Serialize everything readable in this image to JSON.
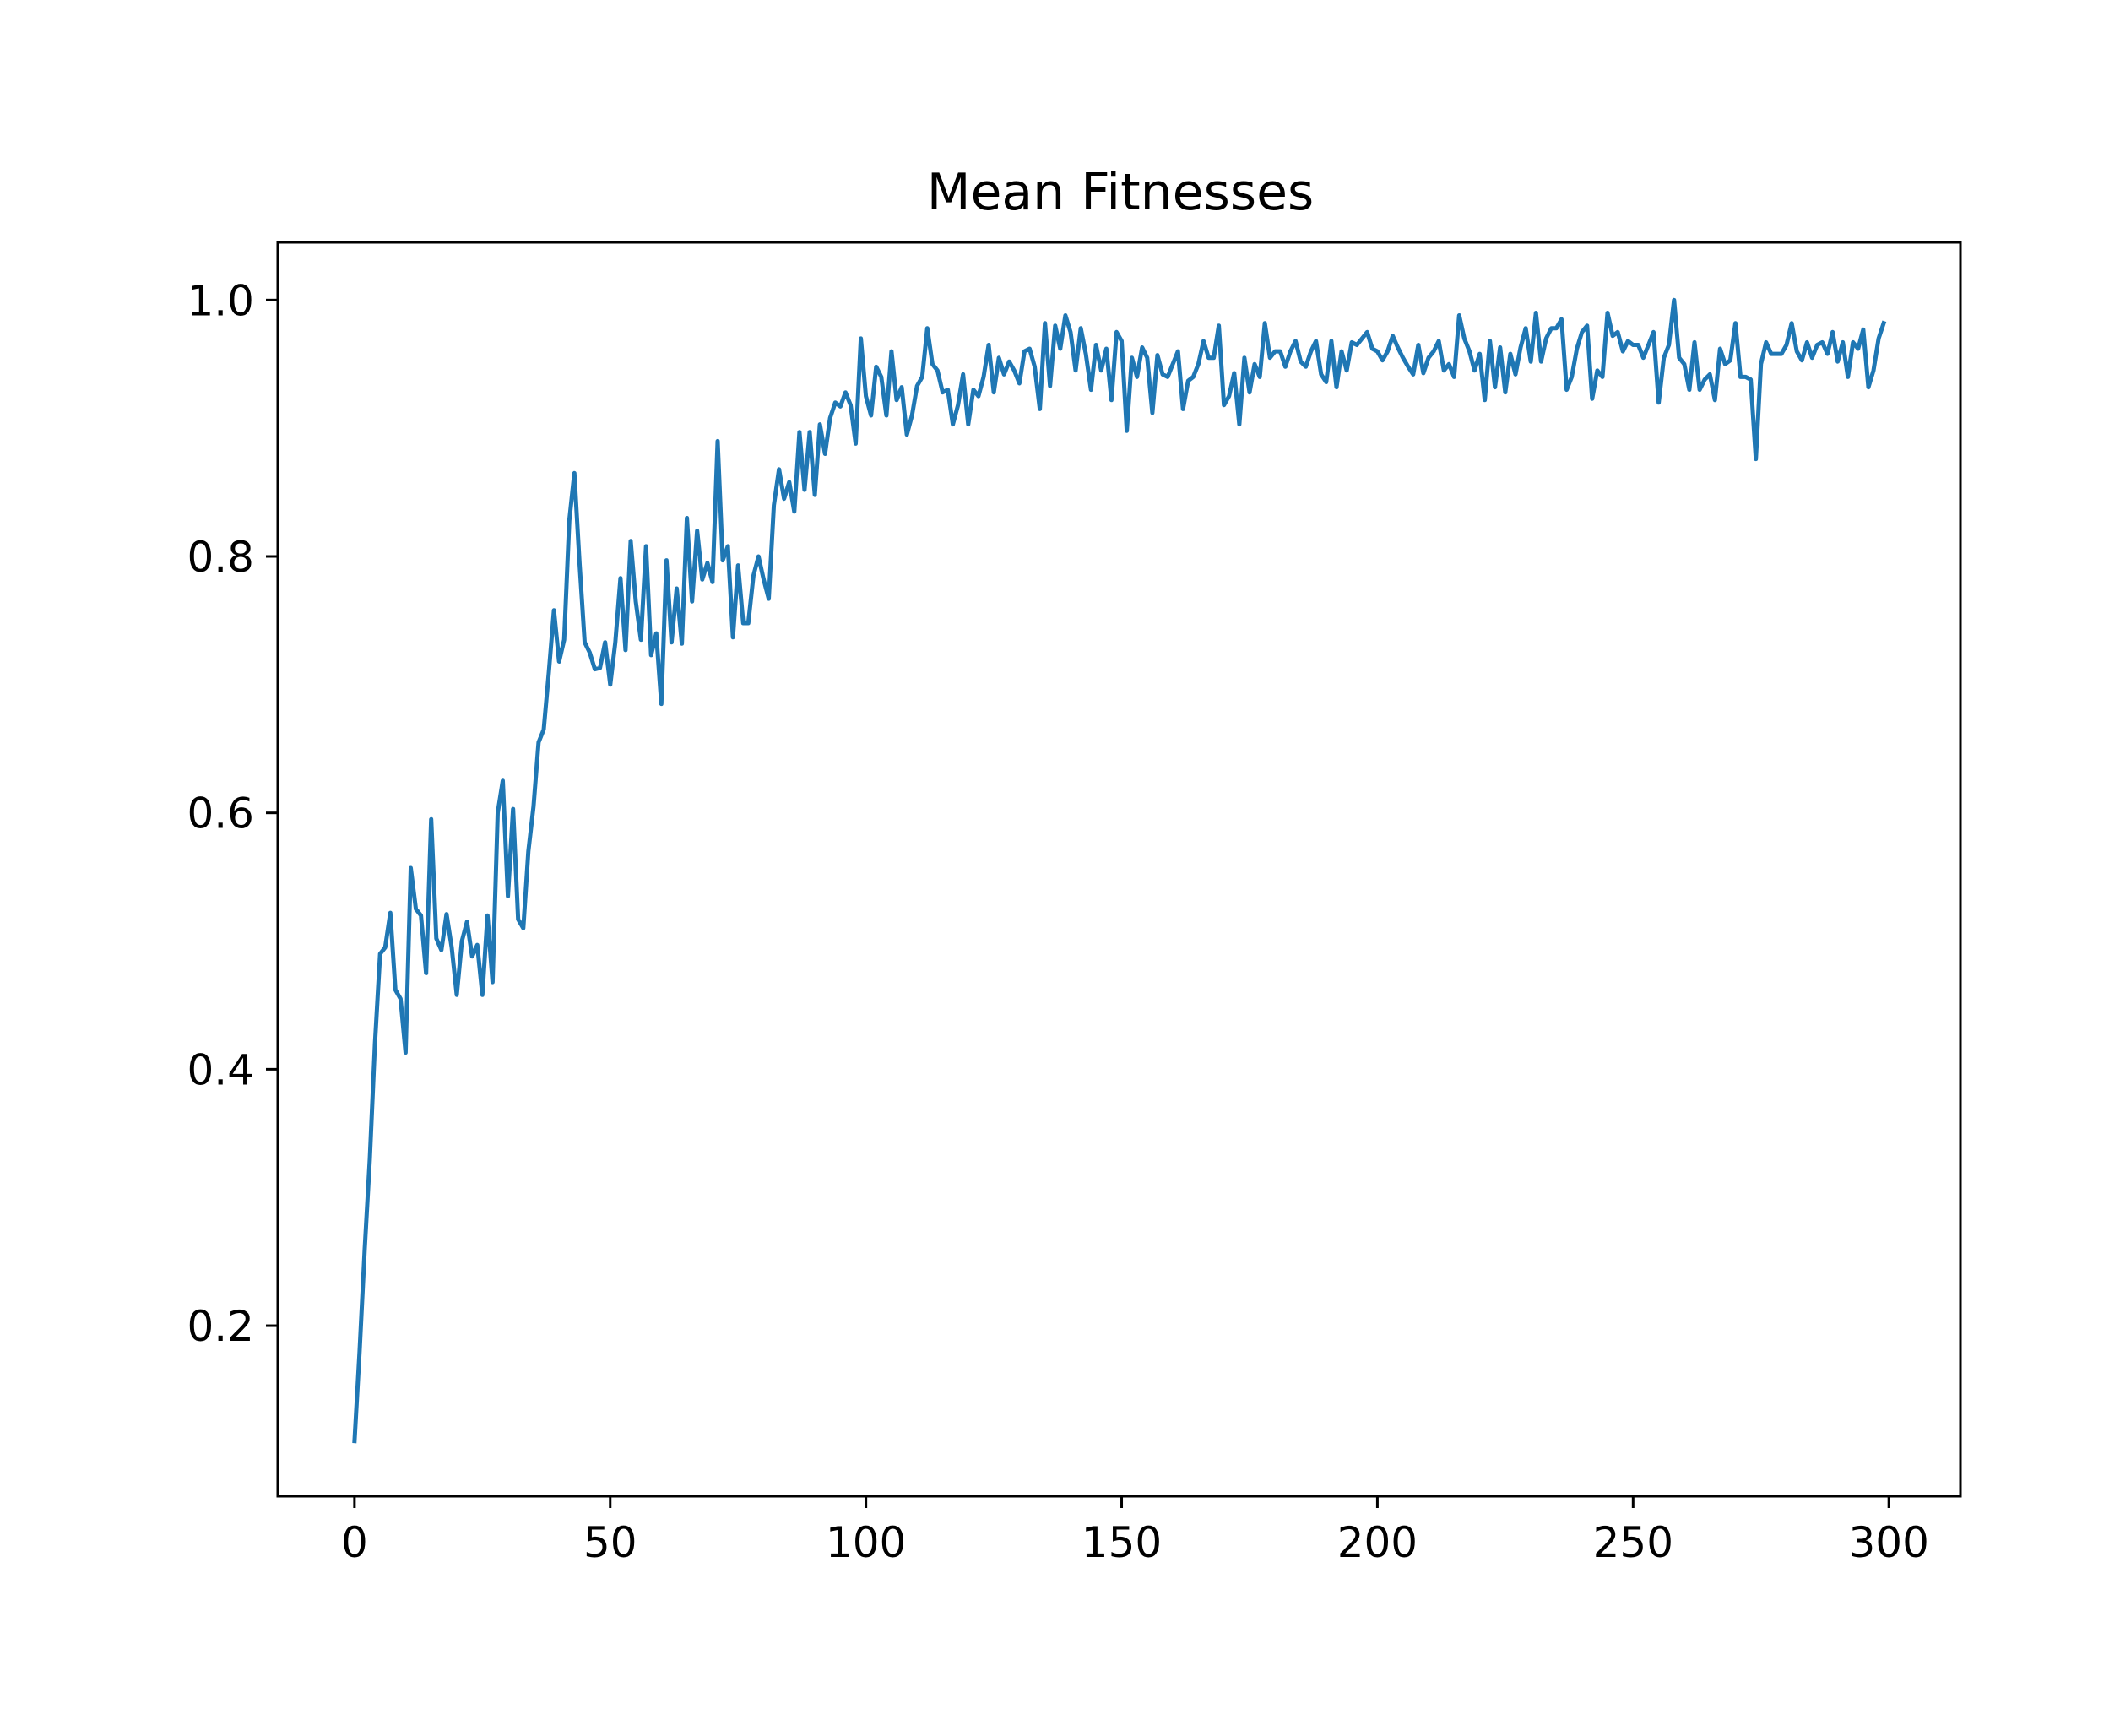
{
  "chart_data": {
    "type": "line",
    "title": "Mean Fitnesses",
    "xlabel": "",
    "ylabel": "",
    "xlim": [
      -15,
      314
    ],
    "ylim": [
      0.067,
      1.045
    ],
    "xticks": [
      0,
      50,
      100,
      150,
      200,
      250,
      300
    ],
    "yticks": [
      0.2,
      0.4,
      0.6,
      0.8,
      1.0
    ],
    "xtick_labels": [
      "0",
      "50",
      "100",
      "150",
      "200",
      "250",
      "300"
    ],
    "ytick_labels": [
      "0.2",
      "0.4",
      "0.6",
      "0.8",
      "1.0"
    ],
    "grid": false,
    "series": [
      {
        "color": "#1f77b4",
        "x": [
          0,
          1,
          2,
          3,
          4,
          5,
          6,
          7,
          8,
          9,
          10,
          11,
          12,
          13,
          14,
          15,
          16,
          17,
          18,
          19,
          20,
          21,
          22,
          23,
          24,
          25,
          26,
          27,
          28,
          29,
          30,
          31,
          32,
          33,
          34,
          35,
          36,
          37,
          38,
          39,
          40,
          41,
          42,
          43,
          44,
          45,
          46,
          47,
          48,
          49,
          50,
          51,
          52,
          53,
          54,
          55,
          56,
          57,
          58,
          59,
          60,
          61,
          62,
          63,
          64,
          65,
          66,
          67,
          68,
          69,
          70,
          71,
          72,
          73,
          74,
          75,
          76,
          77,
          78,
          79,
          80,
          81,
          82,
          83,
          84,
          85,
          86,
          87,
          88,
          89,
          90,
          91,
          92,
          93,
          94,
          95,
          96,
          97,
          98,
          99,
          100,
          101,
          102,
          103,
          104,
          105,
          106,
          107,
          108,
          109,
          110,
          111,
          112,
          113,
          114,
          115,
          116,
          117,
          118,
          119,
          120,
          121,
          122,
          123,
          124,
          125,
          126,
          127,
          128,
          129,
          130,
          131,
          132,
          133,
          134,
          135,
          136,
          137,
          138,
          139,
          140,
          141,
          142,
          143,
          144,
          145,
          146,
          147,
          148,
          149,
          150,
          151,
          152,
          153,
          154,
          155,
          156,
          157,
          158,
          159,
          160,
          161,
          162,
          163,
          164,
          165,
          166,
          167,
          168,
          169,
          170,
          171,
          172,
          173,
          174,
          175,
          176,
          177,
          178,
          179,
          180,
          181,
          182,
          183,
          184,
          185,
          186,
          187,
          188,
          189,
          190,
          191,
          192,
          193,
          194,
          195,
          196,
          197,
          198,
          199,
          200,
          201,
          202,
          203,
          204,
          205,
          206,
          207,
          208,
          209,
          210,
          211,
          212,
          213,
          214,
          215,
          216,
          217,
          218,
          219,
          220,
          221,
          222,
          223,
          224,
          225,
          226,
          227,
          228,
          229,
          230,
          231,
          232,
          233,
          234,
          235,
          236,
          237,
          238,
          239,
          240,
          241,
          242,
          243,
          244,
          245,
          246,
          247,
          248,
          249,
          250,
          251,
          252,
          253,
          254,
          255,
          256,
          257,
          258,
          259,
          260,
          261,
          262,
          263,
          264,
          265,
          266,
          267,
          268,
          269,
          270,
          271,
          272,
          273,
          274,
          275,
          276,
          277,
          278,
          279,
          280,
          281,
          282,
          283,
          284,
          285,
          286,
          287,
          288,
          289,
          290,
          291,
          292,
          293,
          294,
          295,
          296,
          297,
          298,
          299
        ],
        "values": [
          0.11,
          0.18,
          0.26,
          0.33,
          0.42,
          0.49,
          0.495,
          0.522,
          0.462,
          0.455,
          0.413,
          0.557,
          0.525,
          0.52,
          0.475,
          0.595,
          0.502,
          0.493,
          0.521,
          0.495,
          0.458,
          0.5,
          0.515,
          0.488,
          0.497,
          0.458,
          0.52,
          0.468,
          0.6,
          0.625,
          0.535,
          0.603,
          0.517,
          0.51,
          0.57,
          0.605,
          0.655,
          0.665,
          0.71,
          0.758,
          0.718,
          0.735,
          0.828,
          0.865,
          0.795,
          0.733,
          0.725,
          0.712,
          0.713,
          0.733,
          0.7,
          0.733,
          0.783,
          0.727,
          0.812,
          0.765,
          0.735,
          0.808,
          0.723,
          0.74,
          0.685,
          0.797,
          0.733,
          0.775,
          0.732,
          0.83,
          0.765,
          0.82,
          0.782,
          0.795,
          0.78,
          0.89,
          0.797,
          0.808,
          0.737,
          0.793,
          0.748,
          0.748,
          0.785,
          0.8,
          0.782,
          0.767,
          0.84,
          0.868,
          0.845,
          0.858,
          0.835,
          0.897,
          0.852,
          0.897,
          0.848,
          0.903,
          0.88,
          0.908,
          0.92,
          0.917,
          0.928,
          0.918,
          0.888,
          0.97,
          0.925,
          0.91,
          0.948,
          0.94,
          0.91,
          0.96,
          0.922,
          0.932,
          0.895,
          0.91,
          0.933,
          0.94,
          0.978,
          0.95,
          0.945,
          0.928,
          0.93,
          0.903,
          0.918,
          0.942,
          0.903,
          0.93,
          0.925,
          0.94,
          0.965,
          0.928,
          0.955,
          0.942,
          0.952,
          0.945,
          0.935,
          0.96,
          0.962,
          0.948,
          0.915,
          0.982,
          0.933,
          0.98,
          0.962,
          0.988,
          0.975,
          0.945,
          0.978,
          0.958,
          0.93,
          0.965,
          0.945,
          0.962,
          0.922,
          0.975,
          0.968,
          0.898,
          0.955,
          0.94,
          0.963,
          0.955,
          0.912,
          0.957,
          0.942,
          0.94,
          0.95,
          0.96,
          0.915,
          0.937,
          0.94,
          0.95,
          0.968,
          0.955,
          0.955,
          0.98,
          0.918,
          0.925,
          0.943,
          0.903,
          0.955,
          0.928,
          0.95,
          0.94,
          0.982,
          0.955,
          0.96,
          0.96,
          0.948,
          0.96,
          0.968,
          0.952,
          0.948,
          0.96,
          0.968,
          0.942,
          0.936,
          0.968,
          0.932,
          0.96,
          0.945,
          0.967,
          0.965,
          0.97,
          0.975,
          0.962,
          0.96,
          0.953,
          0.96,
          0.972,
          0.963,
          0.955,
          0.948,
          0.942,
          0.965,
          0.943,
          0.955,
          0.96,
          0.968,
          0.945,
          0.95,
          0.94,
          0.988,
          0.97,
          0.96,
          0.945,
          0.958,
          0.922,
          0.968,
          0.932,
          0.963,
          0.928,
          0.958,
          0.942,
          0.963,
          0.978,
          0.952,
          0.99,
          0.952,
          0.97,
          0.978,
          0.978,
          0.985,
          0.93,
          0.94,
          0.962,
          0.975,
          0.98,
          0.923,
          0.945,
          0.94,
          0.99,
          0.972,
          0.975,
          0.96,
          0.968,
          0.965,
          0.965,
          0.955,
          0.965,
          0.975,
          0.92,
          0.955,
          0.965,
          1.0,
          0.955,
          0.95,
          0.93,
          0.967,
          0.93,
          0.938,
          0.942,
          0.922,
          0.962,
          0.95,
          0.953,
          0.982,
          0.94,
          0.94,
          0.938,
          0.876,
          0.95,
          0.967,
          0.958,
          0.958,
          0.958,
          0.965,
          0.982,
          0.96,
          0.953,
          0.967,
          0.955,
          0.965,
          0.967,
          0.958,
          0.975,
          0.952,
          0.967,
          0.94,
          0.967,
          0.962,
          0.977,
          0.932,
          0.945,
          0.97,
          0.982
        ]
      }
    ]
  }
}
